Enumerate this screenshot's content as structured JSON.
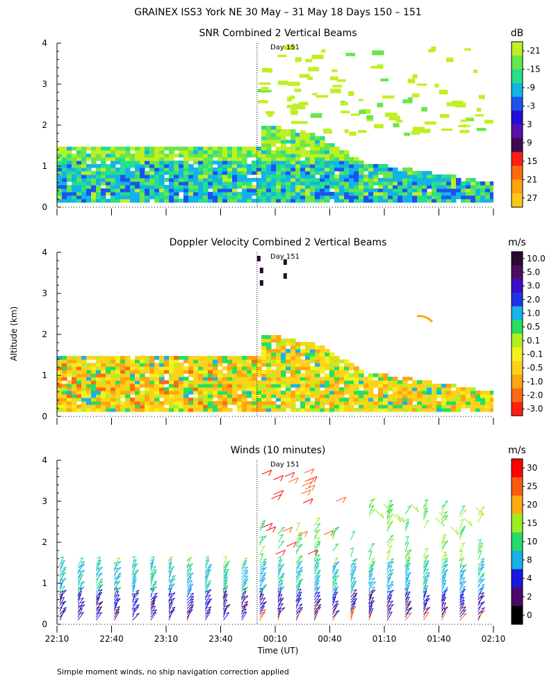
{
  "figure": {
    "title": "GRAINEX ISS3 York NE  30 May – 31 May 18 Days 150 – 151",
    "footnote": "Simple moment winds, no ship navigation correction applied",
    "y_axis_label": "Altitude (km)",
    "x_axis_label": "Time (UT)",
    "day_marker_label": "Day 151"
  },
  "chart_data": [
    {
      "type": "heatmap",
      "title": "SNR Combined 2 Vertical Beams",
      "ylim": [
        0,
        4
      ],
      "yticks": [
        "0",
        "1",
        "2",
        "3",
        "4"
      ],
      "x_range": [
        "22:10",
        "02:10"
      ],
      "xticks": [
        "22:10",
        "22:40",
        "23:10",
        "23:40",
        "00:10",
        "00:40",
        "01:10",
        "01:40",
        "02:10"
      ],
      "day_boundary": "00:00",
      "colorbar": {
        "unit": "dB",
        "labels": [
          "-21",
          "-15",
          "-9",
          "-3",
          "3",
          "9",
          "15",
          "21",
          "27"
        ],
        "colors": [
          "#bff023",
          "#68e64a",
          "#25df8c",
          "#13b3e8",
          "#1b53ef",
          "#1f10d8",
          "#5a10a6",
          "#3e0a4e",
          "#ff1f12",
          "#ff6a10",
          "#ffa210",
          "#ffc61a"
        ]
      }
    },
    {
      "type": "heatmap",
      "title": "Doppler Velocity Combined 2 Vertical Beams",
      "ylim": [
        0,
        4
      ],
      "yticks": [
        "0",
        "1",
        "2",
        "3",
        "4"
      ],
      "x_range": [
        "22:10",
        "02:10"
      ],
      "day_boundary": "00:00",
      "colorbar": {
        "unit": "m/s",
        "labels": [
          "10.0",
          "5.0",
          "3.0",
          "2.0",
          "1.0",
          "0.5",
          "0.1",
          "-0.1",
          "-0.5",
          "-1.0",
          "-2.0",
          "-3.0"
        ],
        "colors": [
          "#2a0a30",
          "#4b0e63",
          "#3a10c6",
          "#1f33e8",
          "#18b3e8",
          "#26e05e",
          "#b5ee22",
          "#f2f21e",
          "#ffd21a",
          "#ffa414",
          "#ff6812",
          "#ff2010"
        ]
      }
    },
    {
      "type": "wind_barbs",
      "title": "Winds (10 minutes)",
      "ylim": [
        0,
        4
      ],
      "yticks": [
        "0",
        "1",
        "2",
        "3",
        "4"
      ],
      "xticks": [
        "22:10",
        "22:40",
        "23:10",
        "23:40",
        "00:10",
        "00:40",
        "01:10",
        "01:40",
        "02:10"
      ],
      "day_boundary": "00:00",
      "colorbar": {
        "unit": "m/s",
        "labels": [
          "30",
          "25",
          "20",
          "15",
          "10",
          "8",
          "4",
          "2",
          "0"
        ],
        "colors": [
          "#ff0000",
          "#ff5a10",
          "#ffaa10",
          "#9cee22",
          "#22dd6a",
          "#18b0e8",
          "#1818e0",
          "#4b0a6b",
          "#000000"
        ]
      }
    }
  ]
}
